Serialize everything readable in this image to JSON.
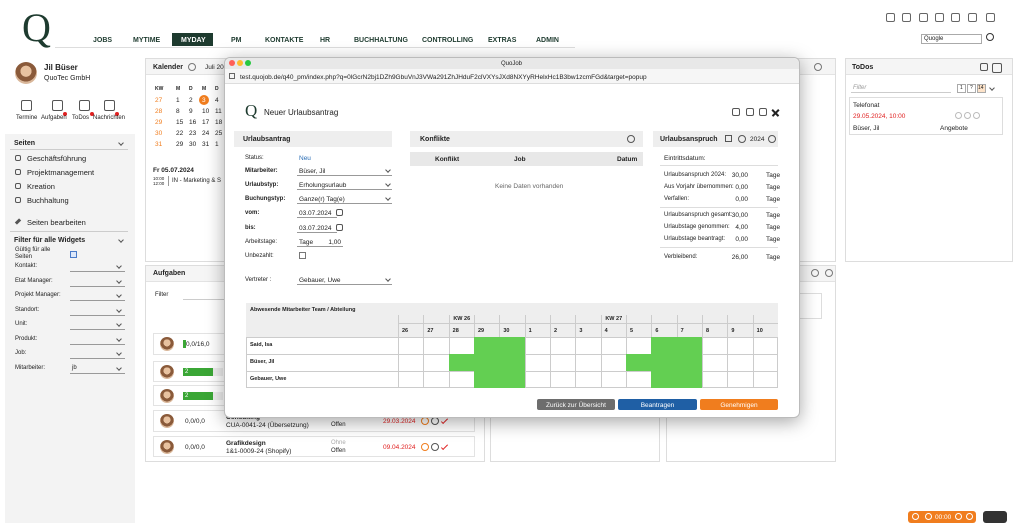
{
  "logo": "Q",
  "nav": {
    "items": [
      "JOBS",
      "MYTIME",
      "MYDAY",
      "PM",
      "KONTAKTE",
      "HR",
      "BUCHHALTUNG",
      "CONTROLLING",
      "EXTRAS",
      "ADMIN"
    ],
    "active": 2
  },
  "search": "Quogle",
  "profile": {
    "name": "Jil Büser",
    "company": "QuoTec GmbH",
    "shortcuts": [
      "Termine",
      "Aufgaben",
      "ToDos",
      "Nachrichten"
    ]
  },
  "pages": {
    "title": "Seiten",
    "items": [
      "Geschäftsführung",
      "Projektmanagement",
      "Kreation",
      "Buchhaltung"
    ],
    "edit": "Seiten bearbeiten"
  },
  "filter": {
    "title": "Filter für alle Widgets",
    "valid_all": "Gültig für alle Seiten",
    "fields": [
      "Kontakt:",
      "Etat Manager:",
      "Projekt Manager:",
      "Standort:",
      "Unit:",
      "Produkt:",
      "Job:",
      "Mitarbeiter:"
    ],
    "employee": "jb"
  },
  "calendar": {
    "title": "Kalender",
    "month": "Juli 20",
    "header": [
      "KW",
      "M",
      "D",
      "M",
      "D"
    ],
    "weeks": [
      {
        "kw": "27",
        "days": [
          "1",
          "2",
          "3",
          "4"
        ]
      },
      {
        "kw": "28",
        "days": [
          "8",
          "9",
          "10",
          "11"
        ]
      },
      {
        "kw": "29",
        "days": [
          "15",
          "16",
          "17",
          "18"
        ]
      },
      {
        "kw": "30",
        "days": [
          "22",
          "23",
          "24",
          "25"
        ]
      },
      {
        "kw": "31",
        "days": [
          "29",
          "30",
          "31",
          "1"
        ]
      }
    ],
    "today": "3",
    "event": {
      "date": "Fr 05.07.2024",
      "start": "10:00",
      "end": "12:00",
      "text": "IN - Marketing & S"
    }
  },
  "tasks": {
    "title": "Aufgaben",
    "filter": "Filter",
    "rows": [
      {
        "hours": "0,0/16,0"
      },
      {
        "hours": "2"
      },
      {
        "hours": "2"
      },
      {
        "hours": "0,0/0,0",
        "job": "Consulting",
        "number": "CUA-0041-24 (Übersetzung)",
        "status": "Offen",
        "date": "29.03.2024"
      },
      {
        "hours": "0,0/0,0",
        "job": "Grafikdesign",
        "number": "1&1-0009-24 (Shopify)",
        "priority": "Ohne",
        "status": "Offen",
        "date": "09.04.2024"
      }
    ]
  },
  "todos": {
    "title": "ToDos",
    "filter": "Filter",
    "pager": [
      "1",
      "?",
      "14"
    ],
    "item": {
      "title": "Telefonat",
      "due": "29.05.2024, 10:00",
      "owner": "Büser, Jil",
      "type": "Angebote"
    }
  },
  "popup": {
    "window_title": "QuoJob",
    "url": "test.quojob.de/q40_pm/index.php?q=0lGcrN2bj1DZh9GbuVnJ3VWa291ZhJHduF2clVXYsJXd8NXYyRHelxHc1B3bw1zcmFGd&target=popup",
    "logo": "Q",
    "title": "Neuer Urlaubsantrag",
    "form": {
      "title": "Urlaubsantrag",
      "fields": [
        {
          "label": "Status:",
          "value": "Neu"
        },
        {
          "label": "Mitarbeiter:",
          "value": "Büser, Jil"
        },
        {
          "label": "Urlaubstyp:",
          "value": "Erholungsurlaub"
        },
        {
          "label": "Buchungstyp:",
          "value": "Ganze(r) Tag(e)"
        },
        {
          "label": "vom:",
          "value": "03.07.2024"
        },
        {
          "label": "bis:",
          "value": "03.07.2024"
        },
        {
          "label": "Arbeitstage:",
          "unit": "Tage",
          "value": "1,00"
        },
        {
          "label": "Unbezahlt:"
        },
        {
          "label": "Vertreter :",
          "value": "Gebauer, Uwe"
        }
      ]
    },
    "conflicts": {
      "title": "Konflikte",
      "columns": [
        "Konflikt",
        "Job",
        "Datum"
      ],
      "empty": "Keine Daten vorhanden"
    },
    "entitlement": {
      "title": "Urlaubsanspruch",
      "year": "2024",
      "entry_label": "Eintrittsdatum:",
      "rows": [
        {
          "label": "Urlaubsanspruch 2024:",
          "value": "30,00",
          "unit": "Tage"
        },
        {
          "label": "Aus Vorjahr übernommen:",
          "value": "0,00",
          "unit": "Tage"
        },
        {
          "label": "Verfallen:",
          "value": "0,00",
          "unit": "Tage"
        },
        {
          "label": "Urlaubsanspruch gesamt:",
          "value": "30,00",
          "unit": "Tage"
        },
        {
          "label": "Urlaubstage genommen:",
          "value": "4,00",
          "unit": "Tage"
        },
        {
          "label": "Urlaubstage beantragt:",
          "value": "0,00",
          "unit": "Tage"
        },
        {
          "label": "Verbleibend:",
          "value": "26,00",
          "unit": "Tage"
        }
      ]
    },
    "team": {
      "title": "Abwesende Mitarbeiter Team / Abteilung",
      "weeks": [
        {
          "label": "KW 26",
          "days": [
            "26",
            "27",
            "28",
            "29",
            "30"
          ]
        },
        {
          "label": "KW 27",
          "days": [
            "1",
            "2",
            "3",
            "4",
            "5",
            "6",
            "7"
          ]
        },
        {
          "label": null,
          "days": [
            "8",
            "9",
            "10"
          ]
        }
      ],
      "members": [
        {
          "name": "Said, Isa",
          "absent": [
            0,
            0,
            0,
            1,
            1,
            0,
            0,
            0,
            0,
            0,
            1,
            1,
            0,
            0,
            0
          ]
        },
        {
          "name": "Büser, Jil",
          "absent": [
            0,
            0,
            1,
            1,
            1,
            0,
            0,
            0,
            0,
            1,
            1,
            1,
            0,
            0,
            0
          ]
        },
        {
          "name": "Gebauer, Uwe",
          "absent": [
            0,
            0,
            0,
            1,
            1,
            0,
            0,
            0,
            0,
            0,
            1,
            1,
            0,
            0,
            0
          ]
        }
      ]
    },
    "buttons": [
      "Zurück zur Übersicht",
      "Beantragen",
      "Genehmigen"
    ]
  },
  "timer": "00:00"
}
